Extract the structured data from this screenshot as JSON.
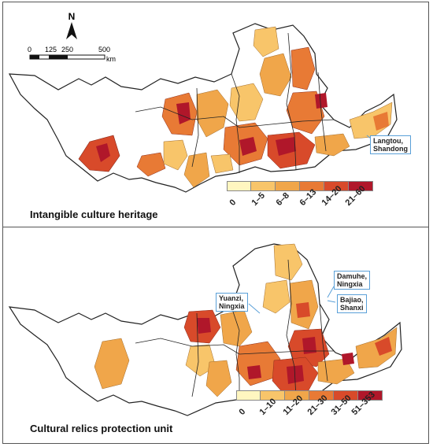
{
  "north_label": "N",
  "scale": {
    "ticks": [
      "0",
      "125",
      "250",
      "500"
    ],
    "unit": "km"
  },
  "panels": [
    {
      "title": "Intangible culture heritage",
      "legend": {
        "labels": [
          "0",
          "1–5",
          "6–8",
          "6–13",
          "14–20",
          "21–60"
        ],
        "colors": [
          "#fff6c0",
          "#f8c56a",
          "#f0a64a",
          "#e87a35",
          "#d84a2a",
          "#b0172a"
        ]
      },
      "callouts": [
        {
          "name": "langtou",
          "lines": [
            "Langtou,",
            "Shandong"
          ]
        }
      ]
    },
    {
      "title": "Cultural relics protection unit",
      "legend": {
        "labels": [
          "0",
          "1–10",
          "11–20",
          "21–30",
          "31–50",
          "51–353"
        ],
        "colors": [
          "#fff6c0",
          "#f8c56a",
          "#f0a64a",
          "#e87a35",
          "#d84a2a",
          "#b0172a"
        ]
      },
      "callouts": [
        {
          "name": "yuanzi",
          "lines": [
            "Yuanzi,",
            "Ningxia"
          ]
        },
        {
          "name": "damuhe",
          "lines": [
            "Damuhe,",
            "Ningxia"
          ]
        },
        {
          "name": "bajiao",
          "lines": [
            "Bajiao,",
            "Shanxi"
          ]
        }
      ]
    }
  ]
}
